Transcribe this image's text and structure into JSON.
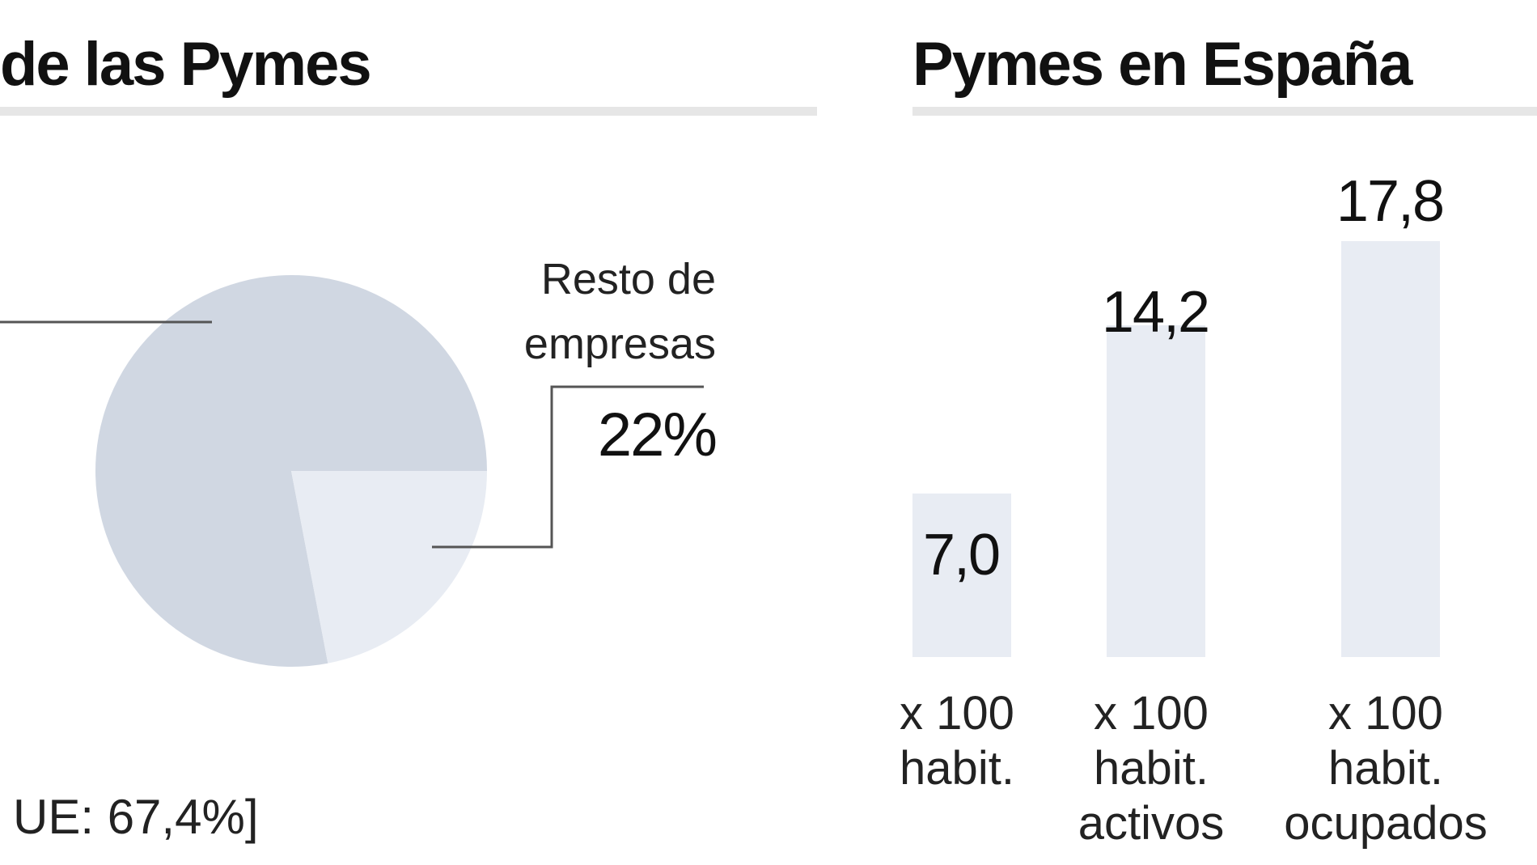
{
  "left_panel": {
    "title": "de las Pymes",
    "footnote": "UE: 67,4%]"
  },
  "right_panel": {
    "title": "Pymes en España"
  },
  "colors": {
    "pie_main": "#d0d7e2",
    "pie_slice": "#e8ecf3",
    "bar_fill": "#e8ecf3",
    "leader_line": "#555555",
    "rule": "#e6e6e6"
  },
  "chart_data": [
    {
      "type": "pie",
      "title": "",
      "slices": [
        {
          "label": "",
          "value": 78
        },
        {
          "label": "Resto de empresas",
          "label_lines": [
            "Resto de",
            "empresas"
          ],
          "value": 22,
          "display_value": "22%"
        }
      ]
    },
    {
      "type": "bar",
      "title": "Pymes en España",
      "categories": [
        "x 100 habit.",
        "x 100 habit. activos",
        "x 100 habit. ocupados"
      ],
      "category_lines": [
        [
          "x 100",
          "habit."
        ],
        [
          "x 100",
          "habit.",
          "activos"
        ],
        [
          "x 100",
          "habit.",
          "ocupados"
        ]
      ],
      "values": [
        7.0,
        14.2,
        17.8
      ],
      "value_labels": [
        "7,0",
        "14,2",
        "17,8"
      ],
      "ylim": [
        0,
        17.8
      ]
    }
  ]
}
